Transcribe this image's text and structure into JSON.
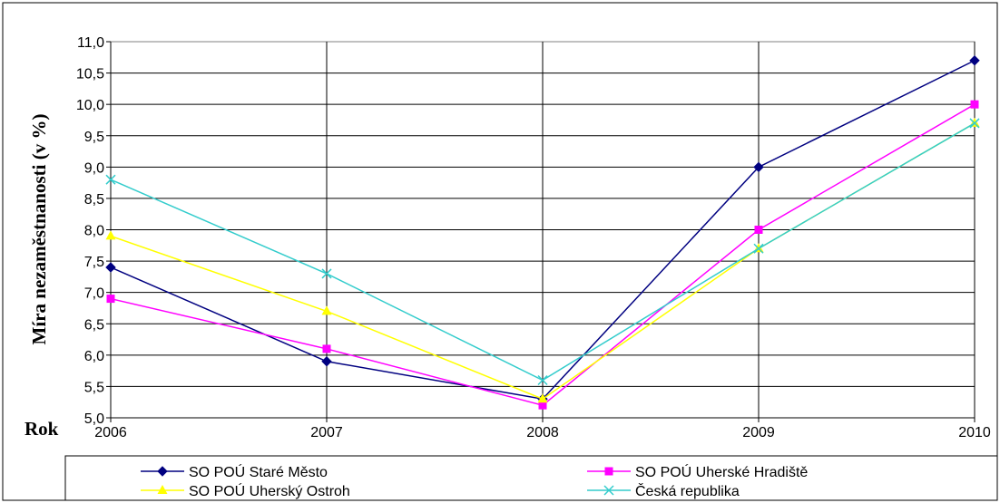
{
  "chart_data": {
    "type": "line",
    "xlabel": "Rok",
    "ylabel": "Míra nezaměstnanosti (v %)",
    "categories": [
      "2006",
      "2007",
      "2008",
      "2009",
      "2010"
    ],
    "ylim": [
      5.0,
      11.0
    ],
    "ytick_labels": [
      "5,0",
      "5,5",
      "6,0",
      "6,5",
      "7,0",
      "7,5",
      "8,0",
      "8,5",
      "9,0",
      "9,5",
      "10,0",
      "10,5",
      "11,0"
    ],
    "grid": true,
    "legend_position": "bottom",
    "series": [
      {
        "name": "SO POÚ Staré Město",
        "values": [
          7.4,
          5.9,
          5.3,
          9.0,
          10.7
        ],
        "color": "#000080",
        "marker": "diamond"
      },
      {
        "name": "SO POÚ Uherské Hradiště",
        "values": [
          6.9,
          6.1,
          5.2,
          8.0,
          10.0
        ],
        "color": "#ff00ff",
        "marker": "square"
      },
      {
        "name": "SO POÚ Uherský Ostroh",
        "values": [
          7.9,
          6.7,
          5.3,
          7.7,
          9.7
        ],
        "color": "#ffff00",
        "marker": "triangle"
      },
      {
        "name": "Česká republika",
        "values": [
          8.8,
          7.3,
          5.6,
          7.7,
          9.7
        ],
        "color": "#33cccc",
        "marker": "x"
      }
    ]
  }
}
